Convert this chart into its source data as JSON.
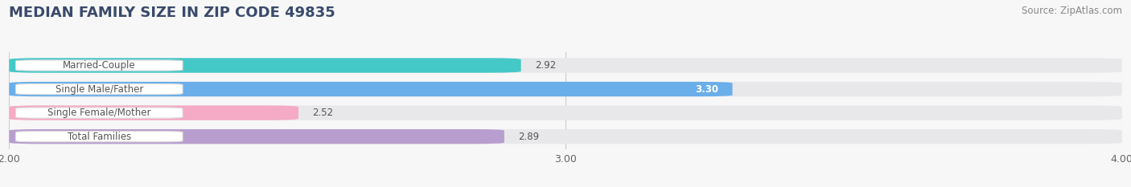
{
  "title": "MEDIAN FAMILY SIZE IN ZIP CODE 49835",
  "source": "Source: ZipAtlas.com",
  "categories": [
    "Married-Couple",
    "Single Male/Father",
    "Single Female/Mother",
    "Total Families"
  ],
  "values": [
    2.92,
    3.3,
    2.52,
    2.89
  ],
  "bar_colors": [
    "#45c8c8",
    "#6aaeea",
    "#f5aac5",
    "#b89ece"
  ],
  "xlim": [
    2.0,
    4.0
  ],
  "xticks": [
    2.0,
    3.0,
    4.0
  ],
  "xtick_labels": [
    "2.00",
    "3.00",
    "4.00"
  ],
  "bg_color": "#f7f7f7",
  "bar_bg_color": "#e8e8ea",
  "bar_height": 0.62,
  "title_fontsize": 13,
  "source_fontsize": 8.5,
  "label_fontsize": 8.5,
  "value_fontsize": 8.5,
  "tick_fontsize": 9,
  "title_color": "#3a4a6b",
  "source_color": "#888888",
  "label_text_color": "#555555",
  "value_outside_color": "#555555",
  "value_inside_color": "#ffffff",
  "grid_color": "#cccccc",
  "label_box_color": "white",
  "label_box_edge_color": "#dddddd"
}
